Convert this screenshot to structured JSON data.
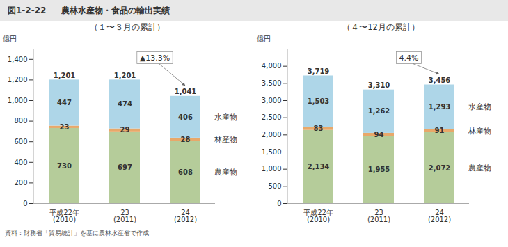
{
  "title": [
    "図1-2-22",
    "農林水産物・食品の輸出実績"
  ],
  "caption": "資料：財務省「貿易統計」を基に農林水産省で作成",
  "chart_data": [
    {
      "type": "bar",
      "stacked": true,
      "data_labels": true,
      "title": "（１〜３月の累計）",
      "categories": [
        "平成22年\n(2010)",
        "23\n(2011)",
        "24\n(2012)"
      ],
      "series": [
        {
          "name": "農産物",
          "color": "#b5cc9a",
          "values": [
            730,
            697,
            608
          ]
        },
        {
          "name": "林産物",
          "color": "#e8a86a",
          "values": [
            23,
            29,
            28
          ]
        },
        {
          "name": "水産物",
          "color": "#aed6e8",
          "values": [
            447,
            474,
            406
          ]
        }
      ],
      "totals": {
        "values": [
          1201,
          1201,
          1041
        ],
        "value_labels": [
          "1,201",
          "1,201",
          "1,041"
        ]
      },
      "ylabel": "億円",
      "ylim": [
        0,
        1500
      ],
      "yticks": [
        0,
        200,
        400,
        600,
        800,
        {
          "value": 1000,
          "label": "1,000"
        },
        {
          "value": 1200,
          "label": "1,200"
        },
        {
          "value": 1400,
          "label": "1,400"
        }
      ],
      "annotations": [
        {
          "text": "▲13.3%"
        }
      ]
    },
    {
      "type": "bar",
      "stacked": true,
      "data_labels": true,
      "title": "（４〜12月の累計）",
      "categories": [
        "平成22年\n(2010)",
        "23\n(2011)",
        "24\n(2012)"
      ],
      "series": [
        {
          "name": "農産物",
          "color": "#b5cc9a",
          "values": [
            2134,
            1955,
            2072
          ],
          "value_labels": [
            "2,134",
            "1,955",
            "2,072"
          ]
        },
        {
          "name": "林産物",
          "color": "#e8a86a",
          "values": [
            83,
            94,
            91
          ]
        },
        {
          "name": "水産物",
          "color": "#aed6e8",
          "values": [
            1503,
            1262,
            1293
          ],
          "value_labels": [
            "1,503",
            "1,262",
            "1,293"
          ]
        }
      ],
      "totals": {
        "values": [
          3719,
          3310,
          3456
        ],
        "value_labels": [
          "3,719",
          "3,310",
          "3,456"
        ]
      },
      "ylabel": "億円",
      "ylim": [
        0,
        4500
      ],
      "yticks": [
        0,
        500,
        {
          "value": 1000,
          "label": "1,000"
        },
        {
          "value": 1500,
          "label": "1,500"
        },
        {
          "value": 2000,
          "label": "2,000"
        },
        {
          "value": 2500,
          "label": "2,500"
        },
        {
          "value": 3000,
          "label": "3,000"
        },
        {
          "value": 3500,
          "label": "3,500"
        },
        {
          "value": 4000,
          "label": "4,000"
        }
      ],
      "annotations": [
        {
          "text": "4.4%"
        }
      ]
    }
  ]
}
